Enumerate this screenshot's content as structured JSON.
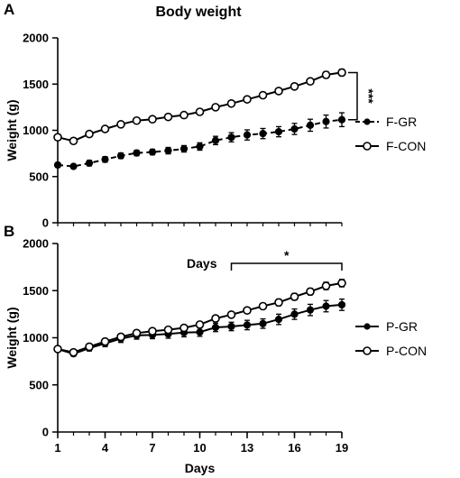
{
  "chart_data": [
    {
      "panel": "A",
      "type": "line",
      "title": "Body weight",
      "xlabel": "",
      "ylabel": "Weight (g)",
      "ylim": [
        0,
        2000
      ],
      "yticks": [
        0,
        500,
        1000,
        1500,
        2000
      ],
      "xlim": [
        1,
        19
      ],
      "x_ticks_labeled": false,
      "x": [
        1,
        2,
        3,
        4,
        5,
        6,
        7,
        8,
        9,
        10,
        11,
        12,
        13,
        14,
        15,
        16,
        17,
        18,
        19
      ],
      "series": [
        {
          "name": "F-GR",
          "style": "dashed",
          "marker": "filled",
          "color": "#000000",
          "values": [
            625,
            610,
            645,
            685,
            725,
            755,
            765,
            780,
            800,
            825,
            890,
            925,
            950,
            965,
            985,
            1015,
            1055,
            1095,
            1115
          ],
          "errors": [
            25,
            20,
            30,
            30,
            30,
            30,
            30,
            35,
            35,
            40,
            45,
            50,
            55,
            55,
            55,
            60,
            65,
            70,
            75
          ]
        },
        {
          "name": "F-CON",
          "style": "solid",
          "marker": "open",
          "color": "#000000",
          "values": [
            925,
            885,
            960,
            1015,
            1065,
            1105,
            1120,
            1145,
            1165,
            1200,
            1250,
            1290,
            1335,
            1380,
            1425,
            1475,
            1530,
            1600,
            1625
          ],
          "errors": [
            20,
            20,
            20,
            20,
            20,
            20,
            20,
            20,
            20,
            20,
            20,
            25,
            25,
            25,
            25,
            30,
            30,
            35,
            35
          ]
        }
      ],
      "significance": {
        "text": "***",
        "between": [
          "F-CON",
          "F-GR"
        ],
        "at_x": 19
      },
      "legend": "right"
    },
    {
      "panel": "B",
      "type": "line",
      "title": "",
      "xlabel": "Days",
      "ylabel": "Weight (g)",
      "ylim": [
        0,
        2000
      ],
      "yticks": [
        0,
        500,
        1000,
        1500,
        2000
      ],
      "xlim": [
        1,
        19
      ],
      "xticks": [
        1,
        4,
        7,
        10,
        13,
        16,
        19
      ],
      "x": [
        1,
        2,
        3,
        4,
        5,
        6,
        7,
        8,
        9,
        10,
        11,
        12,
        13,
        14,
        15,
        16,
        17,
        18,
        19
      ],
      "series": [
        {
          "name": "P-GR",
          "style": "solid",
          "marker": "filled",
          "color": "#000000",
          "values": [
            880,
            830,
            890,
            940,
            990,
            1025,
            1030,
            1040,
            1055,
            1060,
            1110,
            1120,
            1135,
            1150,
            1195,
            1250,
            1295,
            1335,
            1350
          ],
          "errors": [
            25,
            25,
            30,
            35,
            40,
            40,
            40,
            45,
            45,
            45,
            45,
            45,
            50,
            50,
            55,
            55,
            60,
            60,
            60
          ]
        },
        {
          "name": "P-CON",
          "style": "solid",
          "marker": "open",
          "color": "#000000",
          "values": [
            880,
            845,
            905,
            960,
            1010,
            1050,
            1070,
            1085,
            1105,
            1140,
            1205,
            1245,
            1290,
            1335,
            1375,
            1435,
            1490,
            1550,
            1580
          ],
          "errors": [
            20,
            20,
            25,
            25,
            25,
            25,
            25,
            25,
            25,
            25,
            30,
            30,
            30,
            30,
            35,
            35,
            35,
            40,
            40
          ]
        }
      ],
      "significance": {
        "text": "*",
        "bracket_x": [
          12,
          19
        ],
        "label": "Days"
      },
      "legend": "right"
    }
  ]
}
